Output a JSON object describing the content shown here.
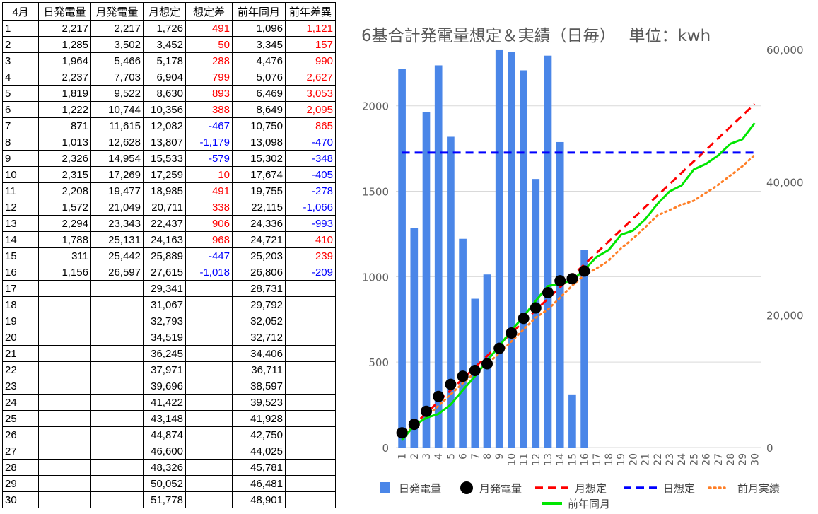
{
  "table": {
    "headers": [
      "4月",
      "日発電量",
      "月発電量",
      "月想定",
      "想定差",
      "前年同月",
      "前年差異"
    ],
    "rows": [
      [
        "1",
        "2,217",
        "2,217",
        "1,726",
        "491",
        "1,096",
        "1,121"
      ],
      [
        "2",
        "1,285",
        "3,502",
        "3,452",
        "50",
        "3,345",
        "157"
      ],
      [
        "3",
        "1,964",
        "5,466",
        "5,178",
        "288",
        "4,476",
        "990"
      ],
      [
        "4",
        "2,237",
        "7,703",
        "6,904",
        "799",
        "5,076",
        "2,627"
      ],
      [
        "5",
        "1,819",
        "9,522",
        "8,630",
        "893",
        "6,469",
        "3,053"
      ],
      [
        "6",
        "1,222",
        "10,744",
        "10,356",
        "388",
        "8,649",
        "2,095"
      ],
      [
        "7",
        "871",
        "11,615",
        "12,082",
        "-467",
        "10,750",
        "865"
      ],
      [
        "8",
        "1,013",
        "12,628",
        "13,807",
        "-1,179",
        "13,098",
        "-470"
      ],
      [
        "9",
        "2,326",
        "14,954",
        "15,533",
        "-579",
        "15,302",
        "-348"
      ],
      [
        "10",
        "2,315",
        "17,269",
        "17,259",
        "10",
        "17,674",
        "-405"
      ],
      [
        "11",
        "2,208",
        "19,477",
        "18,985",
        "491",
        "19,755",
        "-278"
      ],
      [
        "12",
        "1,572",
        "21,049",
        "20,711",
        "338",
        "22,115",
        "-1,066"
      ],
      [
        "13",
        "2,294",
        "23,343",
        "22,437",
        "906",
        "24,336",
        "-993"
      ],
      [
        "14",
        "1,788",
        "25,131",
        "24,163",
        "968",
        "24,721",
        "410"
      ],
      [
        "15",
        "311",
        "25,442",
        "25,889",
        "-447",
        "25,203",
        "239"
      ],
      [
        "16",
        "1,156",
        "26,597",
        "27,615",
        "-1,018",
        "26,806",
        "-209"
      ],
      [
        "17",
        "",
        "",
        "29,341",
        "",
        "28,731",
        ""
      ],
      [
        "18",
        "",
        "",
        "31,067",
        "",
        "29,792",
        ""
      ],
      [
        "19",
        "",
        "",
        "32,793",
        "",
        "32,052",
        ""
      ],
      [
        "20",
        "",
        "",
        "34,519",
        "",
        "32,712",
        ""
      ],
      [
        "21",
        "",
        "",
        "36,245",
        "",
        "34,406",
        ""
      ],
      [
        "22",
        "",
        "",
        "37,971",
        "",
        "36,711",
        ""
      ],
      [
        "23",
        "",
        "",
        "39,696",
        "",
        "38,597",
        ""
      ],
      [
        "24",
        "",
        "",
        "41,422",
        "",
        "39,523",
        ""
      ],
      [
        "25",
        "",
        "",
        "43,148",
        "",
        "41,928",
        ""
      ],
      [
        "26",
        "",
        "",
        "44,874",
        "",
        "42,750",
        ""
      ],
      [
        "27",
        "",
        "",
        "46,600",
        "",
        "44,025",
        ""
      ],
      [
        "28",
        "",
        "",
        "48,326",
        "",
        "45,781",
        ""
      ],
      [
        "29",
        "",
        "",
        "50,052",
        "",
        "46,481",
        ""
      ],
      [
        "30",
        "",
        "",
        "51,778",
        "",
        "48,901",
        ""
      ]
    ]
  },
  "colors": {
    "positive_diff": "#ff0000",
    "negative_diff": "#0000ff",
    "bar": "#4a86e8",
    "cumulative": "#000000",
    "monthly_target": "#ff0000",
    "daily_target": "#0000ff",
    "prev_month": "#ff7f27",
    "prev_year": "#00e600",
    "grid": "#d9d9d9",
    "axis_text": "#5f5f5f"
  },
  "chart_data": {
    "type": "bar",
    "title": "6基合計発電量想定＆実績（日毎）　 単位：kwh",
    "x": [
      "1",
      "2",
      "3",
      "4",
      "5",
      "6",
      "7",
      "8",
      "9",
      "10",
      "11",
      "12",
      "13",
      "14",
      "15",
      "16",
      "17",
      "18",
      "19",
      "20",
      "21",
      "22",
      "23",
      "24",
      "25",
      "26",
      "27",
      "28",
      "29",
      "30"
    ],
    "left_axis": {
      "ticks": [
        "0",
        "500",
        "1000",
        "1500",
        "2000"
      ],
      "ylim": [
        0,
        2330
      ]
    },
    "right_axis": {
      "ticks": [
        "0",
        "20,000",
        "40,000",
        "60,000"
      ],
      "ylim": [
        0,
        60000
      ]
    },
    "grid": true,
    "legend_position": "bottom",
    "series": [
      {
        "name": "日発電量",
        "kind": "bar",
        "axis": "left",
        "values": [
          2217,
          1285,
          1964,
          2237,
          1819,
          1222,
          871,
          1013,
          2326,
          2315,
          2208,
          1572,
          2294,
          1788,
          311,
          1156,
          null,
          null,
          null,
          null,
          null,
          null,
          null,
          null,
          null,
          null,
          null,
          null,
          null,
          null
        ]
      },
      {
        "name": "月発電量",
        "kind": "points",
        "axis": "right",
        "values": [
          2217,
          3502,
          5466,
          7703,
          9522,
          10744,
          11615,
          12628,
          14954,
          17269,
          19477,
          21049,
          23343,
          25131,
          25442,
          26597,
          null,
          null,
          null,
          null,
          null,
          null,
          null,
          null,
          null,
          null,
          null,
          null,
          null,
          null
        ]
      },
      {
        "name": "月想定",
        "kind": "dashed-line",
        "axis": "right",
        "values": [
          1726,
          3452,
          5178,
          6904,
          8630,
          10356,
          12082,
          13807,
          15533,
          17259,
          18985,
          20711,
          22437,
          24163,
          25889,
          27615,
          29341,
          31067,
          32793,
          34519,
          36245,
          37971,
          39696,
          41422,
          43148,
          44874,
          46600,
          48326,
          50052,
          51778
        ]
      },
      {
        "name": "日想定",
        "kind": "dashed-line",
        "axis": "left",
        "values": [
          1726,
          1726,
          1726,
          1726,
          1726,
          1726,
          1726,
          1726,
          1726,
          1726,
          1726,
          1726,
          1726,
          1726,
          1726,
          1726,
          1726,
          1726,
          1726,
          1726,
          1726,
          1726,
          1726,
          1726,
          1726,
          1726,
          1726,
          1726,
          1726,
          1726
        ]
      },
      {
        "name": "前月実績",
        "kind": "dotted-line",
        "axis": "right",
        "values": [
          1900,
          3200,
          4600,
          6300,
          8000,
          9700,
          11300,
          12600,
          14200,
          16000,
          17800,
          19600,
          20800,
          22600,
          24400,
          26000,
          27000,
          28200,
          30000,
          31500,
          33200,
          35000,
          35800,
          36600,
          37200,
          38400,
          39600,
          41000,
          42400,
          44100
        ]
      },
      {
        "name": "前年同月",
        "kind": "line",
        "axis": "right",
        "values": [
          1096,
          3345,
          4476,
          5076,
          6469,
          8649,
          10750,
          13098,
          15302,
          17674,
          19755,
          22115,
          24336,
          24721,
          25203,
          26806,
          28731,
          29792,
          32052,
          32712,
          34406,
          36711,
          38597,
          39523,
          41928,
          42750,
          44025,
          45781,
          46481,
          48901
        ]
      }
    ]
  }
}
